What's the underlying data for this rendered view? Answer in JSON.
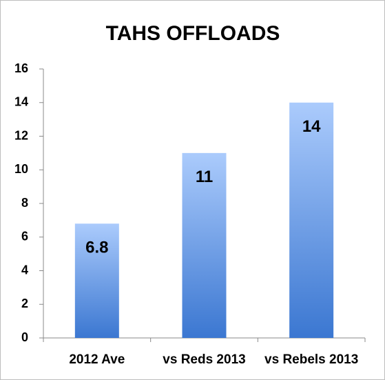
{
  "chart_data": {
    "type": "bar",
    "title": "TAHS OFFLOADS",
    "categories": [
      "2012 Ave",
      "vs Reds 2013",
      "vs Rebels 2013"
    ],
    "values": [
      6.8,
      11,
      14
    ],
    "gradient": [
      "#abcbfc",
      "#3b77d1"
    ],
    "ylim": [
      0,
      16
    ],
    "yticks": [
      0,
      2,
      4,
      6,
      8,
      10,
      12,
      14,
      16
    ]
  }
}
